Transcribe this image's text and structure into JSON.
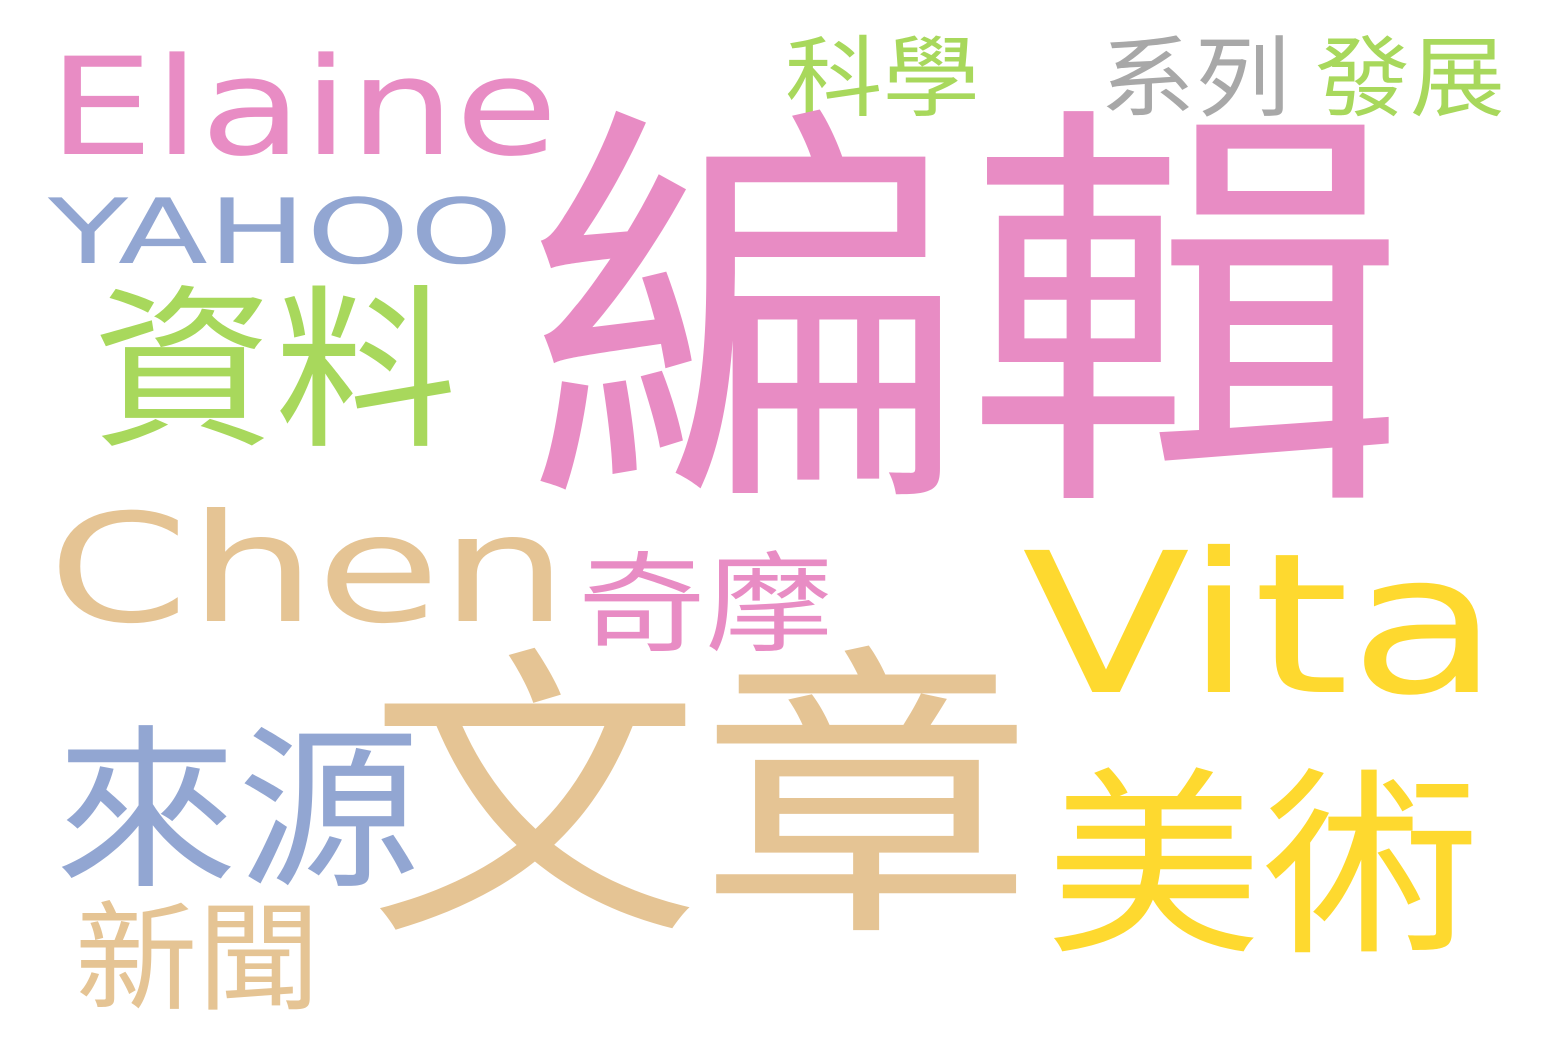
{
  "palette": {
    "pink": "#e88cc4",
    "green": "#a8d85c",
    "gray": "#a8a8a8",
    "blue": "#92a6d2",
    "tan": "#e5c494",
    "yellow": "#fed92f"
  },
  "words": [
    {
      "text": "Elaine",
      "color": "pink",
      "weight": 4
    },
    {
      "text": "科學",
      "color": "green",
      "weight": 2
    },
    {
      "text": "系列",
      "color": "gray",
      "weight": 2
    },
    {
      "text": "發展",
      "color": "green",
      "weight": 2
    },
    {
      "text": "YAHOO",
      "color": "blue",
      "weight": 3
    },
    {
      "text": "編輯",
      "color": "pink",
      "weight": 10
    },
    {
      "text": "資料",
      "color": "green",
      "weight": 4
    },
    {
      "text": "Chen",
      "color": "tan",
      "weight": 5
    },
    {
      "text": "奇摩",
      "color": "pink",
      "weight": 2
    },
    {
      "text": "Vita",
      "color": "yellow",
      "weight": 6
    },
    {
      "text": "來源",
      "color": "blue",
      "weight": 4
    },
    {
      "text": "文章",
      "color": "tan",
      "weight": 8
    },
    {
      "text": "美術",
      "color": "yellow",
      "weight": 5
    },
    {
      "text": "新聞",
      "color": "tan",
      "weight": 3
    }
  ]
}
